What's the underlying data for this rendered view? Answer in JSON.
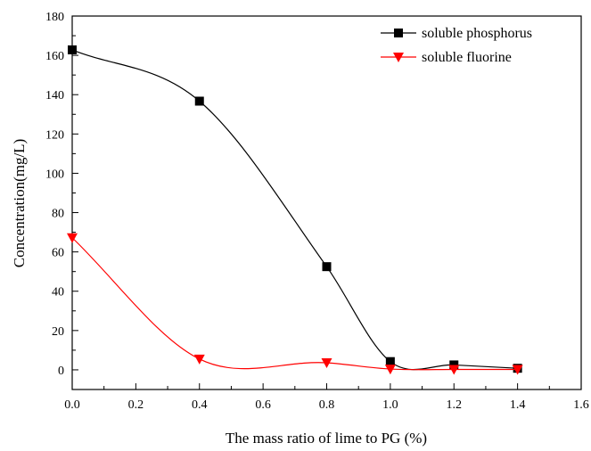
{
  "chart_data": {
    "type": "line",
    "xlabel": "The mass ratio of lime to PG (%)",
    "ylabel": "Concentration(mg/L)",
    "xlim": [
      0.0,
      1.6
    ],
    "ylim": [
      -10,
      180
    ],
    "x_ticks": [
      0.0,
      0.2,
      0.4,
      0.6,
      0.8,
      1.0,
      1.2,
      1.4,
      1.6
    ],
    "x_tick_labels": [
      "0.0",
      "0.2",
      "0.4",
      "0.6",
      "0.8",
      "1.0",
      "1.2",
      "1.4",
      "1.6"
    ],
    "y_ticks": [
      0,
      20,
      40,
      60,
      80,
      100,
      120,
      140,
      160,
      180
    ],
    "y_tick_labels": [
      "0",
      "20",
      "40",
      "60",
      "80",
      "100",
      "120",
      "140",
      "160",
      "180"
    ],
    "grid": false,
    "legend_position": "top-right",
    "series": [
      {
        "name": "soluble phosphorus",
        "color": "#000000",
        "marker": "square",
        "x": [
          0.0,
          0.4,
          0.8,
          1.0,
          1.2,
          1.4
        ],
        "y": [
          162.8,
          136.7,
          52.5,
          4.2,
          2.5,
          0.8
        ]
      },
      {
        "name": "soluble fluorine",
        "color": "#ff0000",
        "marker": "triangle-down",
        "x": [
          0.0,
          0.4,
          0.8,
          1.0,
          1.2,
          1.4
        ],
        "y": [
          67.2,
          5.5,
          3.6,
          0.4,
          0.2,
          0.2
        ]
      }
    ]
  }
}
